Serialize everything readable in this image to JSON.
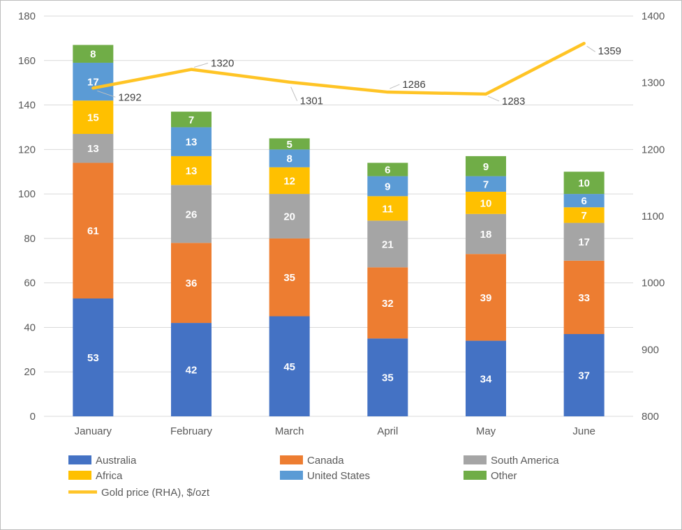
{
  "chart_data": {
    "type": "bar",
    "subtype": "stacked-bar-with-line",
    "title": "",
    "categories": [
      "January",
      "February",
      "March",
      "April",
      "May",
      "June"
    ],
    "bar_series": [
      {
        "name": "Australia",
        "color": "#4472C4",
        "values": [
          53,
          42,
          45,
          35,
          34,
          37
        ]
      },
      {
        "name": "Canada",
        "color": "#ED7D31",
        "values": [
          61,
          36,
          35,
          32,
          39,
          33
        ]
      },
      {
        "name": "South America",
        "color": "#A5A5A5",
        "values": [
          13,
          26,
          20,
          21,
          18,
          17
        ]
      },
      {
        "name": "Africa",
        "color": "#FFC000",
        "values": [
          15,
          13,
          12,
          11,
          10,
          7
        ]
      },
      {
        "name": "United States",
        "color": "#5B9BD5",
        "values": [
          17,
          13,
          8,
          9,
          7,
          6
        ]
      },
      {
        "name": "Other",
        "color": "#70AD47",
        "values": [
          8,
          7,
          5,
          6,
          9,
          10
        ]
      }
    ],
    "line_series": {
      "name": "Gold price (RHA), $/ozt",
      "color": "#FFC425",
      "values": [
        1292,
        1320,
        1301,
        1286,
        1283,
        1359
      ]
    },
    "left_axis": {
      "min": 0,
      "max": 180,
      "step": 20,
      "ticks": [
        "0",
        "20",
        "40",
        "60",
        "80",
        "100",
        "120",
        "140",
        "160",
        "180"
      ]
    },
    "right_axis": {
      "min": 800,
      "max": 1400,
      "step": 100,
      "ticks": [
        "800",
        "900",
        "1000",
        "1100",
        "1200",
        "1300",
        "1400"
      ]
    },
    "grid": true,
    "gridline_color": "#D9D9D9",
    "leader_line_color": "#BFBFBF",
    "legend_position": "bottom"
  }
}
